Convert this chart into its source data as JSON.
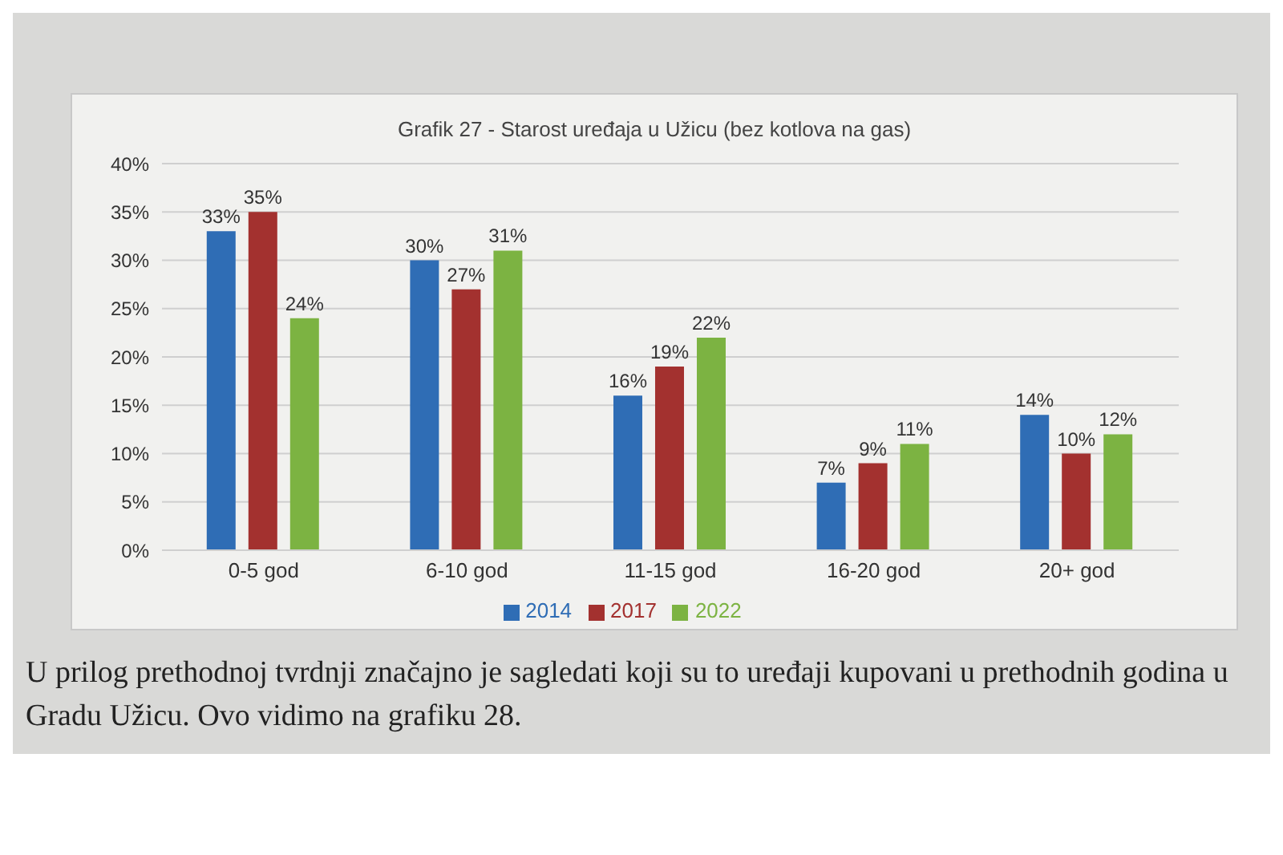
{
  "chart_data": {
    "type": "bar",
    "title": "Grafik 27 - Starost uređaja u Užicu (bez kotlova na gas)",
    "categories": [
      "0-5 god",
      "6-10 god",
      "11-15 god",
      "16-20 god",
      "20+ god"
    ],
    "series": [
      {
        "name": "2014",
        "color": "#2f6db5",
        "values": [
          33,
          30,
          16,
          7,
          14
        ],
        "value_labels": [
          "33%",
          "30%",
          "16%",
          "7%",
          "14%"
        ]
      },
      {
        "name": "2017",
        "color": "#a3312f",
        "values": [
          35,
          27,
          19,
          9,
          10
        ],
        "value_labels": [
          "35%",
          "27%",
          "19%",
          "9%",
          "10%"
        ]
      },
      {
        "name": "2022",
        "color": "#7cb342",
        "values": [
          24,
          31,
          22,
          11,
          12
        ],
        "value_labels": [
          "24%",
          "31%",
          "22%",
          "11%",
          "12%"
        ]
      }
    ],
    "ylim": [
      0,
      40
    ],
    "yticks": [
      {
        "value": 0,
        "label": "0%"
      },
      {
        "value": 5,
        "label": "5%"
      },
      {
        "value": 10,
        "label": "10%"
      },
      {
        "value": 15,
        "label": "15%"
      },
      {
        "value": 20,
        "label": "20%"
      },
      {
        "value": 25,
        "label": "25%"
      },
      {
        "value": 30,
        "label": "30%"
      },
      {
        "value": 35,
        "label": "35%"
      },
      {
        "value": 40,
        "label": "40%"
      }
    ],
    "grid": "y",
    "legend": "bottom",
    "annotations": [
      "U prilog prethodnoj tvrdnji značajno je sagledati koji su to uređaji kupovani u prethodnih godina u Gradu Užicu. Ovo vidimo na grafiku 28."
    ]
  }
}
